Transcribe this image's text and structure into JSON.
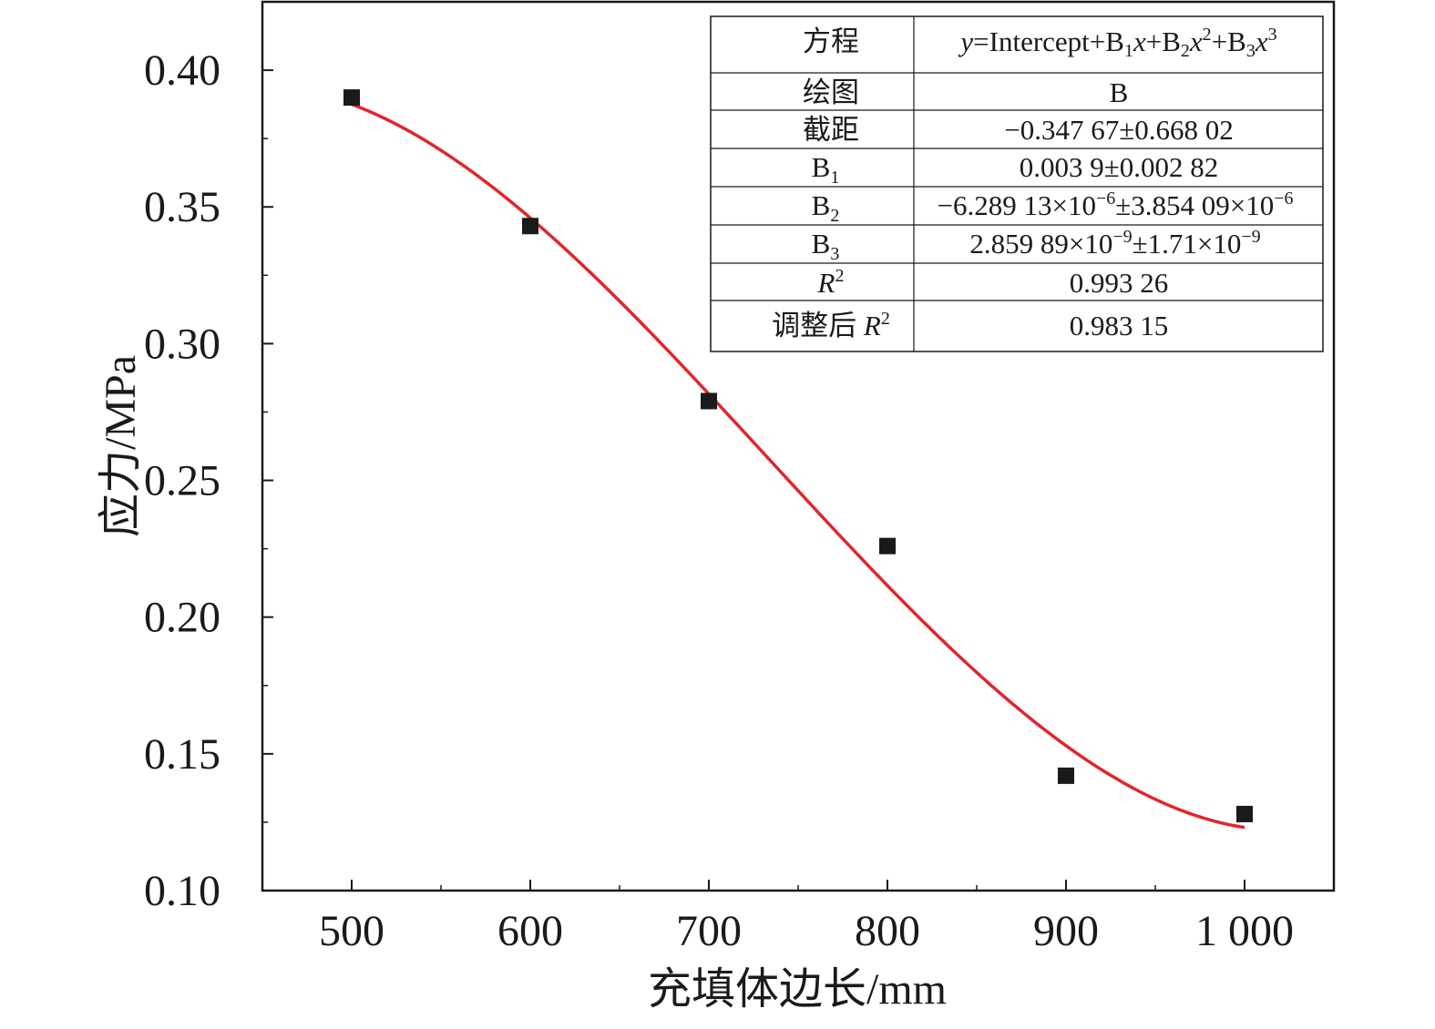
{
  "chart_data": {
    "type": "scatter",
    "xlabel": "充填体边长/mm",
    "ylabel": "应力/MPa",
    "xlim": [
      450,
      1050
    ],
    "ylim": [
      0.1,
      0.425
    ],
    "x_ticks": [
      500,
      600,
      700,
      800,
      900,
      1000
    ],
    "x_tick_labels": [
      "500",
      "600",
      "700",
      "800",
      "900",
      "1 000"
    ],
    "y_ticks": [
      0.1,
      0.15,
      0.2,
      0.25,
      0.3,
      0.35,
      0.4
    ],
    "y_tick_labels": [
      "0.10",
      "0.15",
      "0.20",
      "0.25",
      "0.30",
      "0.35",
      "0.40"
    ],
    "series": [
      {
        "marker": "square",
        "color": "#1a1a1a",
        "x": [
          500,
          600,
          700,
          800,
          900,
          1000
        ],
        "y": [
          0.39,
          0.343,
          0.279,
          0.226,
          0.142,
          0.128
        ]
      }
    ],
    "fit": {
      "model": "cubic polynomial",
      "color": "#e0262b",
      "coefficients": {
        "intercept": -0.34767,
        "b1": 0.0039,
        "b2": -6.28913e-06,
        "b3": 2.85989e-09
      },
      "x_range": [
        500,
        1000
      ]
    },
    "grid": false,
    "legend": "none",
    "stats_table": {
      "placement": "top-right",
      "rows": [
        [
          "方程",
          "y=Intercept+B1x+B2x2+B3x3"
        ],
        [
          "绘图",
          "B"
        ],
        [
          "截距",
          "−0.347 67±0.668 02"
        ],
        [
          "B1",
          "0.003 9±0.002 82"
        ],
        [
          "B2",
          "−6.289 13×10−6±3.854 09×10−6"
        ],
        [
          "B3",
          "2.859 89×10−9±1.71×10−9"
        ],
        [
          "R2",
          "0.993 26"
        ],
        [
          "调整后 R2",
          "0.983 15"
        ]
      ]
    }
  }
}
